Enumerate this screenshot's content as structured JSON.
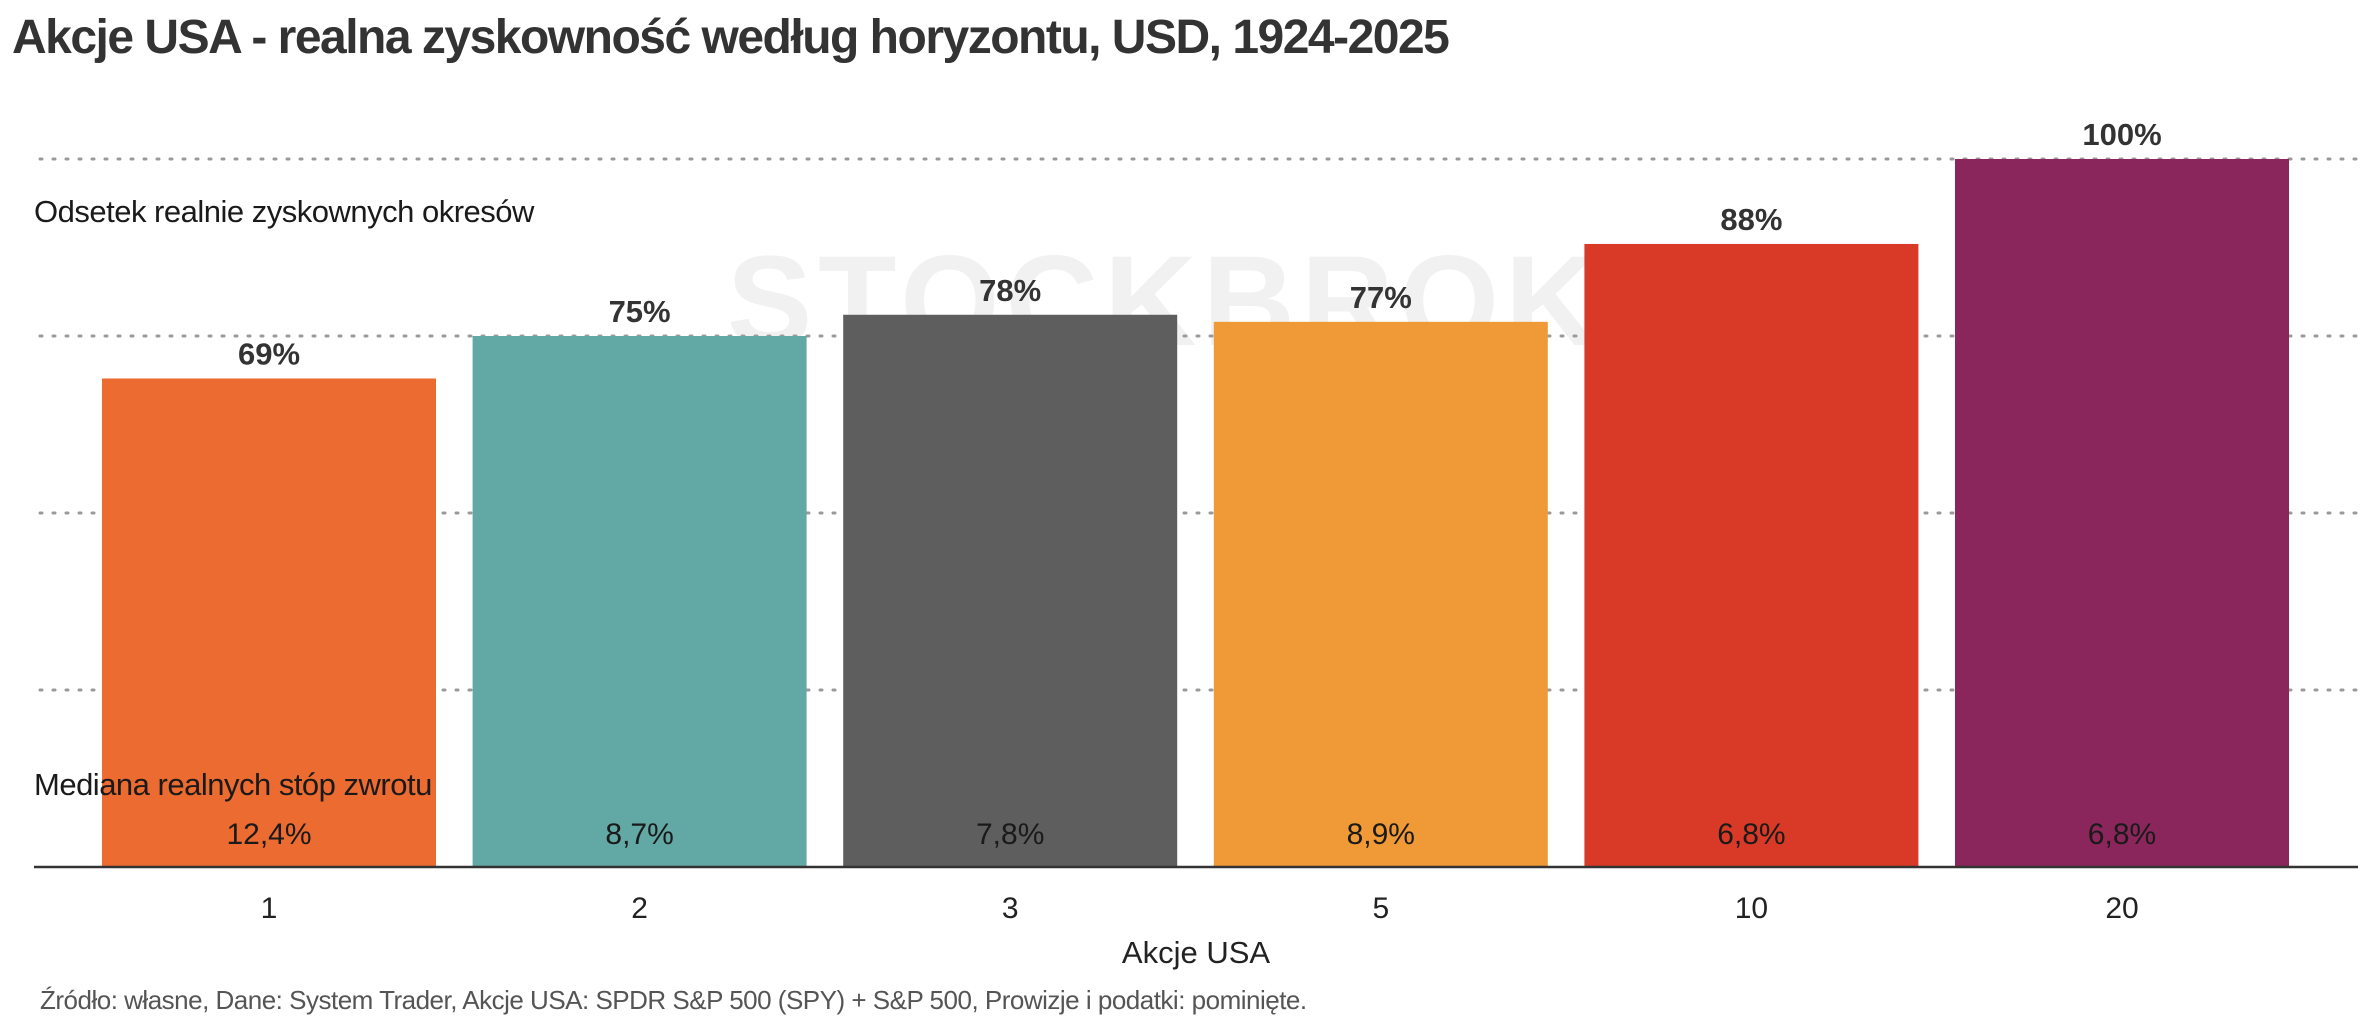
{
  "title": "Akcje USA - realna zyskowność według horyzontu, USD, 1924-2025",
  "source_note": "Źródło: własne, Dane: System Trader, Akcje USA: SPDR S&P 500 (SPY) + S&P 500, Prowizje i podatki: pominięte.",
  "chart_data": {
    "type": "bar",
    "title": "Akcje USA - realna zyskowność według horyzontu, USD, 1924-2025",
    "xlabel": "Akcje USA",
    "ylabel": "",
    "categories": [
      "1",
      "2",
      "3",
      "5",
      "10",
      "20"
    ],
    "ylim": [
      0,
      100
    ],
    "grid": "horizontal dotted",
    "series": [
      {
        "name": "Odsetek realnie zyskownych okresów",
        "values": [
          69,
          75,
          78,
          77,
          88,
          100
        ],
        "labels": [
          "69%",
          "75%",
          "78%",
          "77%",
          "88%",
          "100%"
        ]
      },
      {
        "name": "Mediana realnych stóp zwrotu",
        "values": [
          12.4,
          8.7,
          7.8,
          8.9,
          6.8,
          6.8
        ],
        "labels": [
          "12,4%",
          "8,7%",
          "7,8%",
          "8,9%",
          "6,8%",
          "6,8%"
        ]
      }
    ],
    "colors": [
      "#ec6b30",
      "#62a8a5",
      "#5e5e5e",
      "#f09a37",
      "#d93a28",
      "#8a265b"
    ],
    "annotations": {
      "top_label": "Odsetek realnie zyskownych okresów",
      "bottom_label": "Mediana realnych stóp zwrotu"
    },
    "watermark": "STOCKBROKER"
  }
}
